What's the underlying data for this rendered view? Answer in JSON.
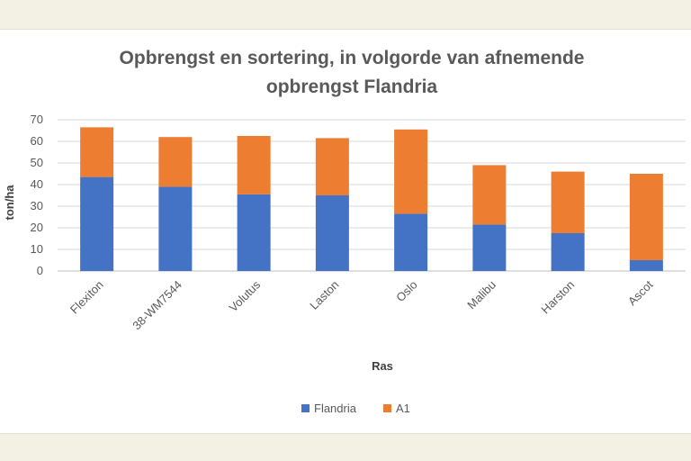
{
  "chart_data": {
    "type": "bar",
    "stacked": true,
    "title_lines": [
      "Opbrengst en sortering, in volgorde van afnemende",
      "opbrengst Flandria"
    ],
    "xlabel": "Ras",
    "ylabel": "ton/ha",
    "ylim": [
      0,
      70
    ],
    "yticks": [
      "0",
      "10",
      "20",
      "30",
      "40",
      "50",
      "60",
      "70"
    ],
    "grid": true,
    "legend_position": "bottom",
    "categories": [
      "Flexiton",
      "38-WM7544",
      "Volutus",
      "Laston",
      "Oslo",
      "Malibu",
      "Harston",
      "Ascot"
    ],
    "series": [
      {
        "name": "Flandria",
        "color": "#4472c4",
        "values": [
          43.5,
          39,
          35.5,
          35,
          26.5,
          21.5,
          17.5,
          5
        ]
      },
      {
        "name": "A1",
        "color": "#ed7d31",
        "values": [
          23,
          23,
          27,
          26.5,
          39,
          27.5,
          28.5,
          40
        ]
      }
    ]
  }
}
